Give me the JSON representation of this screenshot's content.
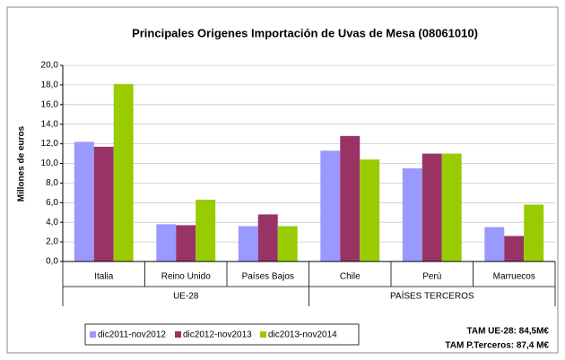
{
  "chart_data": {
    "type": "bar",
    "title": "Principales Origenes Importación de Uvas de Mesa (08061010)",
    "y_label": "Millones de euros",
    "categories": [
      "Italia",
      "Reino Unido",
      "Países Bajos",
      "Chile",
      "Perú",
      "Marruecos"
    ],
    "groups": [
      {
        "label": "UE-28",
        "size": 3
      },
      {
        "label": "PAÍSES TERCEROS",
        "size": 3
      }
    ],
    "series": [
      {
        "name": "dic2011-nov2012",
        "color": "#9999ff",
        "values": [
          12.2,
          3.8,
          3.6,
          11.3,
          9.5,
          3.5
        ]
      },
      {
        "name": "dic2012-nov2013",
        "color": "#993366",
        "values": [
          11.7,
          3.7,
          4.8,
          12.8,
          11.0,
          2.6
        ]
      },
      {
        "name": "dic2013-nov2014",
        "color": "#99cc00",
        "values": [
          18.1,
          6.3,
          3.6,
          10.4,
          11.0,
          5.8
        ]
      }
    ],
    "ylim": [
      0,
      20
    ],
    "yticks": [
      {
        "value": 0,
        "label": "0,0"
      },
      {
        "value": 2,
        "label": "2,0"
      },
      {
        "value": 4,
        "label": "4,0"
      },
      {
        "value": 6,
        "label": "6,0"
      },
      {
        "value": 8,
        "label": "8,0"
      },
      {
        "value": 10,
        "label": "10,0"
      },
      {
        "value": 12,
        "label": "12,0"
      },
      {
        "value": 14,
        "label": "14,0"
      },
      {
        "value": 16,
        "label": "16,0"
      },
      {
        "value": 18,
        "label": "18,0"
      },
      {
        "value": 20,
        "label": "20,0"
      }
    ],
    "grid": true,
    "annotations": [
      "TAM UE-28: 84,5M€",
      "TAM P.Terceros: 87,4 M€"
    ]
  }
}
